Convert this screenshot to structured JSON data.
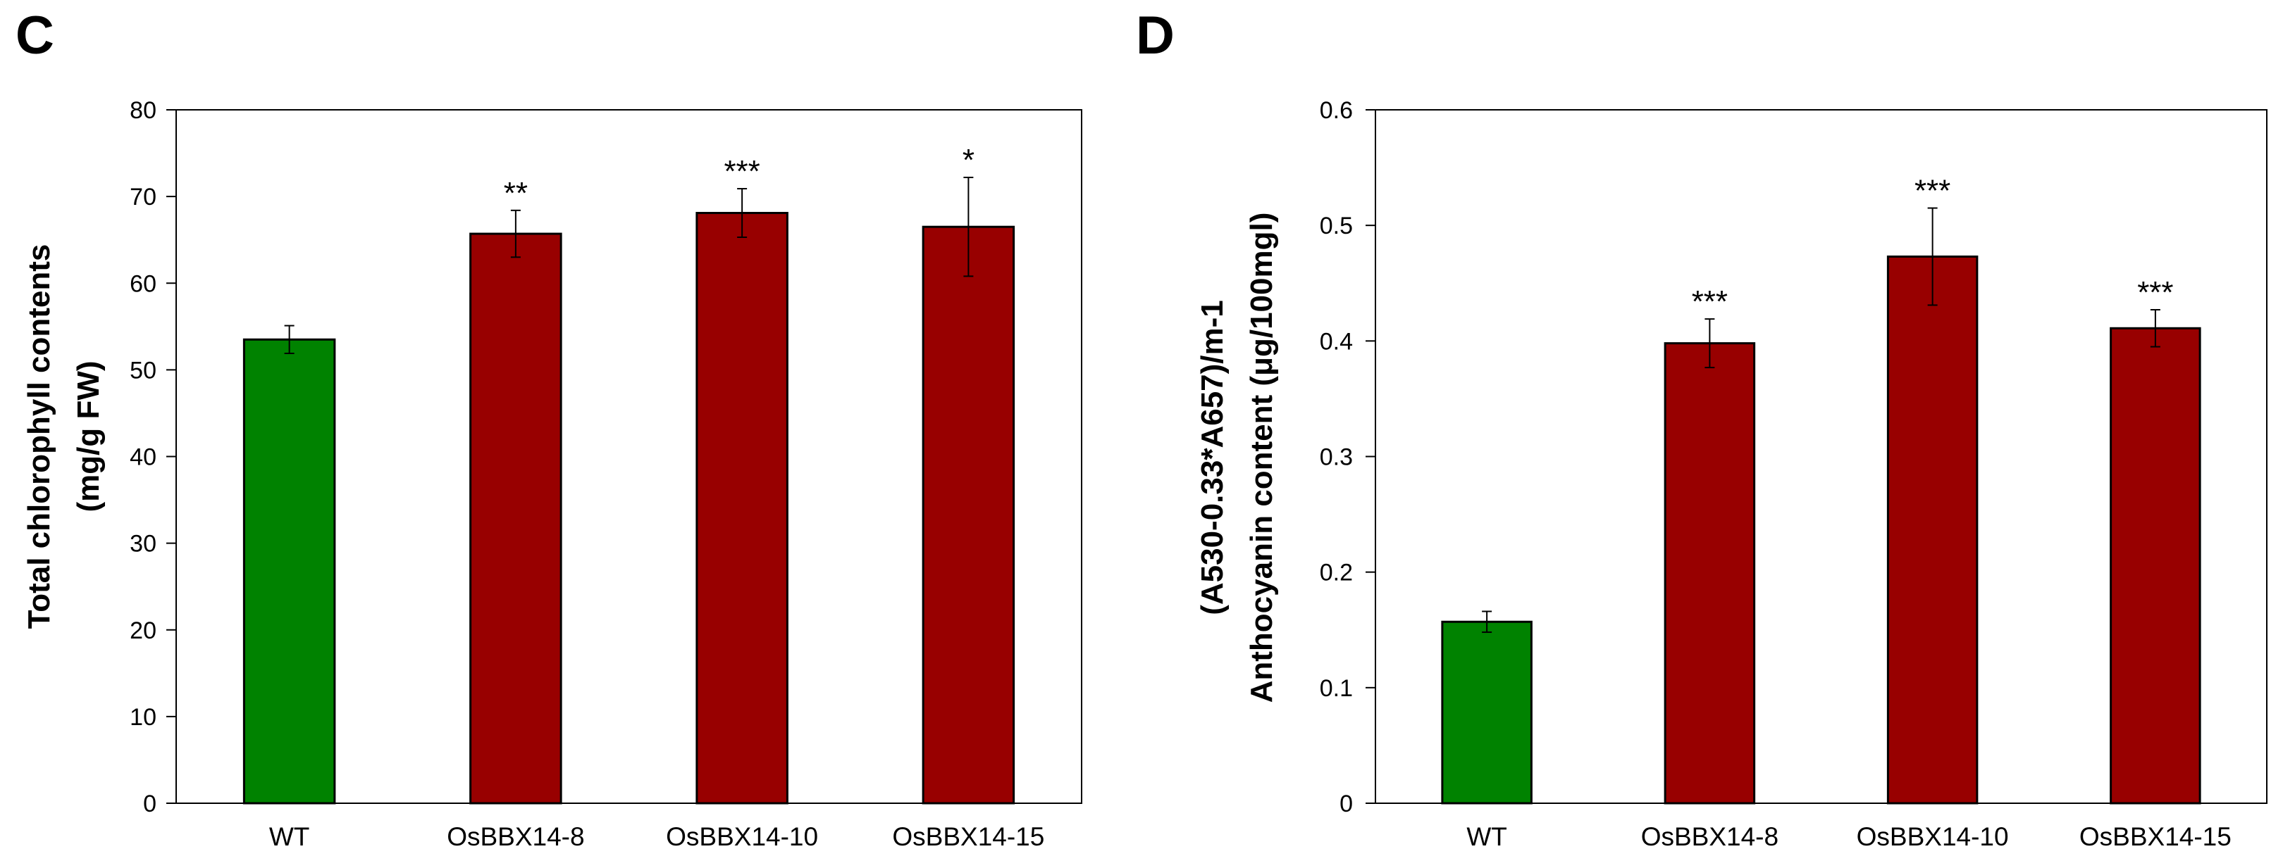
{
  "chart_data": [
    {
      "panel": "C",
      "type": "bar",
      "title": "",
      "xlabel": "",
      "ylabel_lines": [
        "Total chlorophyll contents",
        "(mg/g FW)"
      ],
      "ylim": [
        0,
        80
      ],
      "yticks": [
        0,
        10,
        20,
        30,
        40,
        50,
        60,
        70,
        80
      ],
      "ytick_labels": [
        "0",
        "10",
        "20",
        "30",
        "40",
        "50",
        "60",
        "70",
        "80"
      ],
      "categories": [
        "WT",
        "OsBBX14-8",
        "OsBBX14-10",
        "OsBBX14-15"
      ],
      "values": [
        53.5,
        65.7,
        68.1,
        66.5
      ],
      "errors": [
        1.6,
        2.7,
        2.8,
        5.7
      ],
      "significance": [
        "",
        "**",
        "***",
        "*"
      ],
      "bar_colors": [
        "#008200",
        "#980000",
        "#980000",
        "#980000"
      ],
      "grid": false
    },
    {
      "panel": "D",
      "type": "bar",
      "title": "",
      "xlabel": "",
      "ylabel_lines": [
        "(A530-0.33*A657)/m-1",
        "Anthocyanin content (μg/100mgl)"
      ],
      "ylim": [
        0,
        0.6
      ],
      "yticks": [
        0,
        0.1,
        0.2,
        0.3,
        0.4,
        0.5,
        0.6
      ],
      "ytick_labels": [
        "0",
        "0.1",
        "0.2",
        "0.3",
        "0.4",
        "0.5",
        "0.6"
      ],
      "categories": [
        "WT",
        "OsBBX14-8",
        "OsBBX14-10",
        "OsBBX14-15"
      ],
      "values": [
        0.157,
        0.398,
        0.473,
        0.411
      ],
      "errors": [
        0.009,
        0.021,
        0.042,
        0.016
      ],
      "significance": [
        "",
        "***",
        "***",
        "***"
      ],
      "bar_colors": [
        "#008200",
        "#980000",
        "#980000",
        "#980000"
      ],
      "grid": false
    }
  ]
}
